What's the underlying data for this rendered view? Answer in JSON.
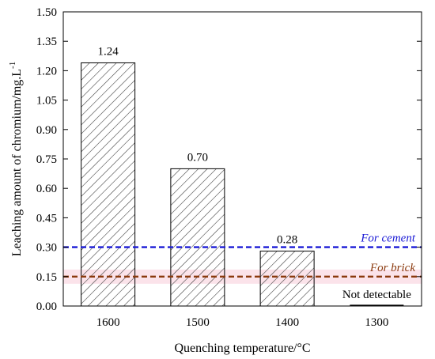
{
  "chart_data": {
    "type": "bar",
    "categories": [
      "1600",
      "1500",
      "1400",
      "1300"
    ],
    "values": [
      1.24,
      0.7,
      0.28,
      0
    ],
    "data_labels": [
      "1.24",
      "0.70",
      "0.28",
      "Not detectable"
    ],
    "xlabel": "Quenching temperature/°C",
    "ylabel": "Leaching amount of chromium/mg.L",
    "ylabel_superscript": "-1",
    "ylim": [
      0,
      1.5
    ],
    "yticks": [
      "0.00",
      "0.15",
      "0.30",
      "0.45",
      "0.60",
      "0.75",
      "0.90",
      "1.05",
      "1.20",
      "1.35",
      "1.50"
    ],
    "bar_fill": "hatched",
    "grid": false,
    "reference_lines": [
      {
        "label": "For cement",
        "value": 0.3,
        "color": "#1a1ad6",
        "style": "dashed"
      },
      {
        "label": "For brick",
        "value": 0.15,
        "color": "#8b3a0e",
        "style": "dashed",
        "band_color": "#fbe3ea"
      }
    ]
  }
}
